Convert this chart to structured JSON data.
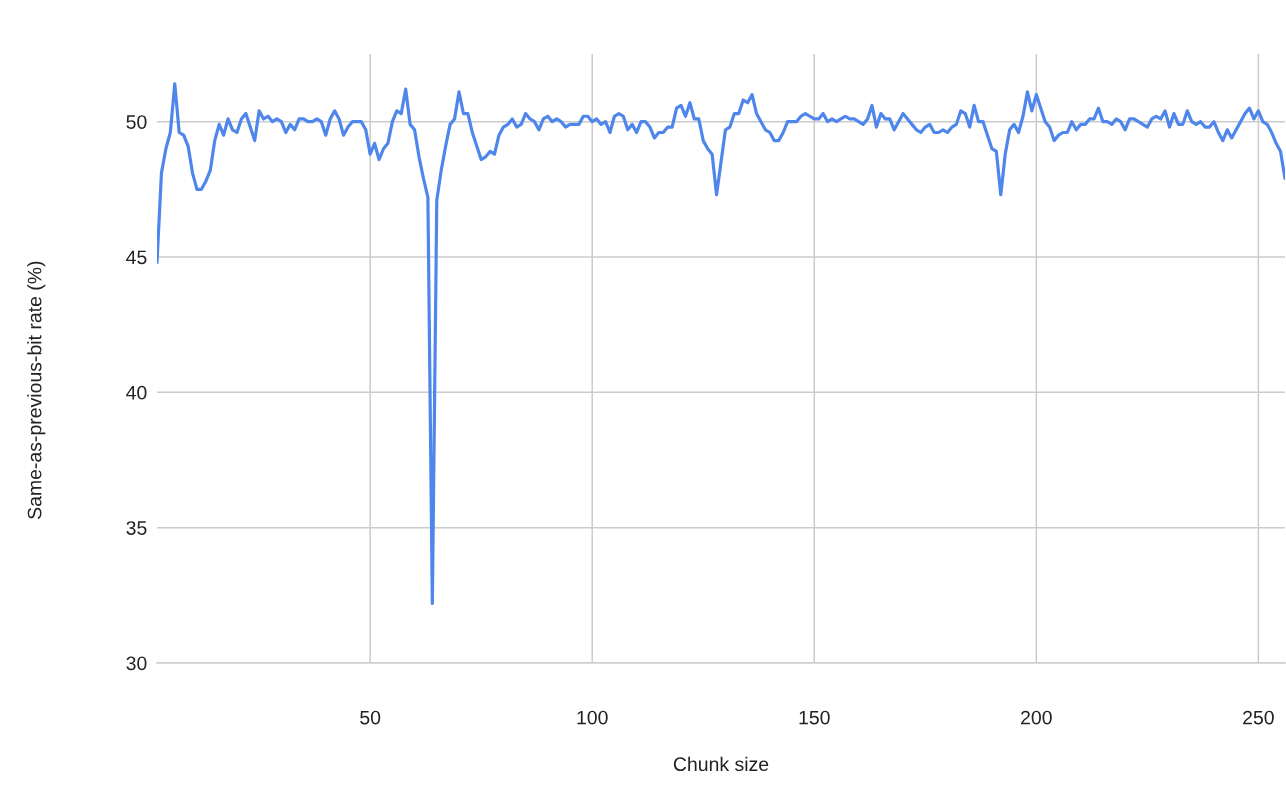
{
  "chart_data": {
    "type": "line",
    "xlabel": "Chunk size",
    "ylabel": "Same-as-previous-bit rate (%)",
    "x": [
      2,
      3,
      4,
      5,
      6,
      7,
      8,
      9,
      10,
      11,
      12,
      13,
      14,
      15,
      16,
      17,
      18,
      19,
      20,
      21,
      22,
      23,
      24,
      25,
      26,
      27,
      28,
      29,
      30,
      31,
      32,
      33,
      34,
      35,
      36,
      37,
      38,
      39,
      40,
      41,
      42,
      43,
      44,
      45,
      46,
      47,
      48,
      49,
      50,
      51,
      52,
      53,
      54,
      55,
      56,
      57,
      58,
      59,
      60,
      61,
      62,
      63,
      64,
      65,
      66,
      67,
      68,
      69,
      70,
      71,
      72,
      73,
      74,
      75,
      76,
      77,
      78,
      79,
      80,
      81,
      82,
      83,
      84,
      85,
      86,
      87,
      88,
      89,
      90,
      91,
      92,
      93,
      94,
      95,
      96,
      97,
      98,
      99,
      100,
      101,
      102,
      103,
      104,
      105,
      106,
      107,
      108,
      109,
      110,
      111,
      112,
      113,
      114,
      115,
      116,
      117,
      118,
      119,
      120,
      121,
      122,
      123,
      124,
      125,
      126,
      127,
      128,
      130,
      131,
      132,
      133,
      134,
      135,
      136,
      137,
      138,
      139,
      140,
      141,
      142,
      143,
      144,
      145,
      146,
      147,
      148,
      149,
      150,
      151,
      152,
      153,
      154,
      155,
      156,
      157,
      158,
      159,
      160,
      161,
      162,
      163,
      164,
      165,
      166,
      167,
      168,
      169,
      170,
      171,
      172,
      173,
      174,
      175,
      176,
      177,
      178,
      179,
      180,
      181,
      182,
      183,
      184,
      185,
      186,
      187,
      188,
      189,
      190,
      191,
      192,
      193,
      194,
      195,
      196,
      197,
      198,
      199,
      200,
      201,
      202,
      203,
      204,
      205,
      206,
      207,
      208,
      209,
      210,
      211,
      212,
      213,
      214,
      215,
      216,
      217,
      218,
      219,
      220,
      221,
      222,
      223,
      224,
      225,
      226,
      227,
      228,
      229,
      230,
      231,
      232,
      233,
      234,
      235,
      236,
      237,
      238,
      239,
      240,
      241,
      242,
      243,
      244,
      245,
      246,
      247,
      248,
      249,
      250,
      251,
      252,
      253,
      254,
      255,
      256
    ],
    "series": [
      {
        "color": "#4f86ec",
        "values": [
          44.8,
          48.1,
          49.0,
          49.6,
          51.4,
          49.6,
          49.5,
          49.1,
          48.1,
          47.5,
          47.5,
          47.8,
          48.2,
          49.3,
          49.9,
          49.5,
          50.1,
          49.7,
          49.6,
          50.1,
          50.3,
          49.8,
          49.3,
          50.4,
          50.1,
          50.2,
          50.0,
          50.1,
          50.0,
          49.6,
          49.9,
          49.7,
          50.1,
          50.1,
          50.0,
          50.0,
          50.1,
          50.0,
          49.5,
          50.1,
          50.4,
          50.1,
          49.5,
          49.8,
          50.0,
          50.0,
          50.0,
          49.7,
          48.8,
          49.2,
          48.6,
          49.0,
          49.2,
          50.0,
          50.4,
          50.3,
          51.2,
          49.9,
          49.7,
          48.7,
          47.9,
          47.2,
          32.2,
          47.1,
          48.2,
          49.1,
          49.9,
          50.1,
          51.1,
          50.3,
          50.3,
          49.6,
          49.1,
          48.6,
          48.7,
          48.9,
          48.8,
          49.5,
          49.8,
          49.9,
          50.1,
          49.8,
          49.9,
          50.3,
          50.1,
          50.0,
          49.7,
          50.1,
          50.2,
          50.0,
          50.1,
          50.0,
          49.8,
          49.9,
          49.9,
          49.9,
          50.2,
          50.2,
          50.0,
          50.1,
          49.9,
          50.0,
          49.6,
          50.2,
          50.3,
          50.2,
          49.7,
          49.9,
          49.6,
          50.0,
          50.0,
          49.8,
          49.4,
          49.6,
          49.6,
          49.8,
          49.8,
          50.5,
          50.6,
          50.2,
          50.7,
          50.1,
          50.1,
          49.3,
          49.0,
          48.8,
          47.3,
          49.7,
          49.8,
          50.3,
          50.3,
          50.8,
          50.7,
          51.0,
          50.3,
          50.0,
          49.7,
          49.6,
          49.3,
          49.3,
          49.6,
          50.0,
          50.0,
          50.0,
          50.2,
          50.3,
          50.2,
          50.1,
          50.1,
          50.3,
          50.0,
          50.1,
          50.0,
          50.1,
          50.2,
          50.1,
          50.1,
          50.0,
          49.9,
          50.1,
          50.6,
          49.8,
          50.3,
          50.1,
          50.1,
          49.7,
          50.0,
          50.3,
          50.1,
          49.9,
          49.7,
          49.6,
          49.8,
          49.9,
          49.6,
          49.6,
          49.7,
          49.6,
          49.8,
          49.9,
          50.4,
          50.3,
          49.8,
          50.6,
          50.0,
          50.0,
          49.5,
          49.0,
          48.9,
          47.3,
          48.8,
          49.7,
          49.9,
          49.6,
          50.2,
          51.1,
          50.4,
          51.0,
          50.5,
          50.0,
          49.8,
          49.3,
          49.5,
          49.6,
          49.6,
          50.0,
          49.7,
          49.9,
          49.9,
          50.1,
          50.1,
          50.5,
          50.0,
          50.0,
          49.9,
          50.1,
          50.0,
          49.7,
          50.1,
          50.1,
          50.0,
          49.9,
          49.8,
          50.1,
          50.2,
          50.1,
          50.4,
          49.8,
          50.3,
          49.9,
          49.9,
          50.4,
          50.0,
          49.9,
          50.0,
          49.8,
          49.8,
          50.0,
          49.6,
          49.3,
          49.7,
          49.4,
          49.7,
          50.0,
          50.3,
          50.5,
          50.1,
          50.4,
          50.0,
          49.9,
          49.6,
          49.2,
          48.9,
          47.9
        ]
      }
    ],
    "xlim": [
      2,
      256
    ],
    "ylim": [
      30,
      52.5
    ],
    "xticks": [
      50,
      100,
      150,
      200,
      250
    ],
    "yticks": [
      30,
      35,
      40,
      45,
      50
    ],
    "grid": true,
    "line_style": "solid"
  }
}
